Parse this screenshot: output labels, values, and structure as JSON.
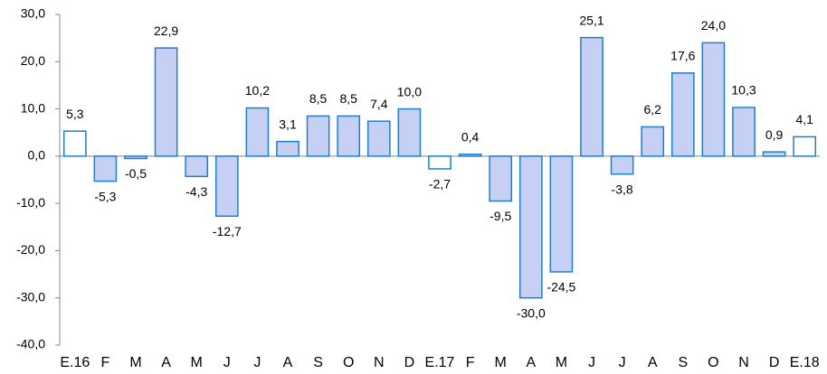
{
  "chart_data": {
    "type": "bar",
    "categories": [
      "E.16",
      "F",
      "M",
      "A",
      "M",
      "J",
      "J",
      "A",
      "S",
      "O",
      "N",
      "D",
      "E.17",
      "F",
      "M",
      "A",
      "M",
      "J",
      "J",
      "A",
      "S",
      "O",
      "N",
      "D",
      "E.18"
    ],
    "values": [
      5.3,
      -5.3,
      -0.5,
      22.9,
      -4.3,
      -12.7,
      10.2,
      3.1,
      8.5,
      8.5,
      7.4,
      10.0,
      -2.7,
      0.4,
      -9.5,
      -30.0,
      -24.5,
      25.1,
      -3.8,
      6.2,
      17.6,
      24.0,
      10.3,
      0.9,
      4.1
    ],
    "value_labels": [
      "5,3",
      "-5,3",
      "-0,5",
      "22,9",
      "-4,3",
      "-12,7",
      "10,2",
      "3,1",
      "8,5",
      "8,5",
      "7,4",
      "10,0",
      "-2,7",
      "0,4",
      "-9,5",
      "-30,0",
      "-24,5",
      "25,1",
      "-3,8",
      "6,2",
      "17,6",
      "24,0",
      "10,3",
      "0,9",
      "4,1"
    ],
    "colors": [
      "#ffffff",
      "#c6d0f5",
      "#c6d0f5",
      "#c6d0f5",
      "#c6d0f5",
      "#c6d0f5",
      "#c6d0f5",
      "#c6d0f5",
      "#c6d0f5",
      "#c6d0f5",
      "#c6d0f5",
      "#c6d0f5",
      "#ffffff",
      "#c6d0f5",
      "#c6d0f5",
      "#c6d0f5",
      "#c6d0f5",
      "#c6d0f5",
      "#c6d0f5",
      "#c6d0f5",
      "#c6d0f5",
      "#c6d0f5",
      "#c6d0f5",
      "#c6d0f5",
      "#ffffff"
    ],
    "edge_color": "#1f7fc4",
    "ylim": [
      -40,
      30
    ],
    "yticks": [
      {
        "value": -40,
        "label": "-40,0"
      },
      {
        "value": -30,
        "label": "-30,0"
      },
      {
        "value": -20,
        "label": "-20,0"
      },
      {
        "value": -10,
        "label": "-10,0"
      },
      {
        "value": 0,
        "label": "0,0"
      },
      {
        "value": 10,
        "label": "10,0"
      },
      {
        "value": 20,
        "label": "20,0"
      },
      {
        "value": 30,
        "label": "30,0"
      }
    ]
  }
}
